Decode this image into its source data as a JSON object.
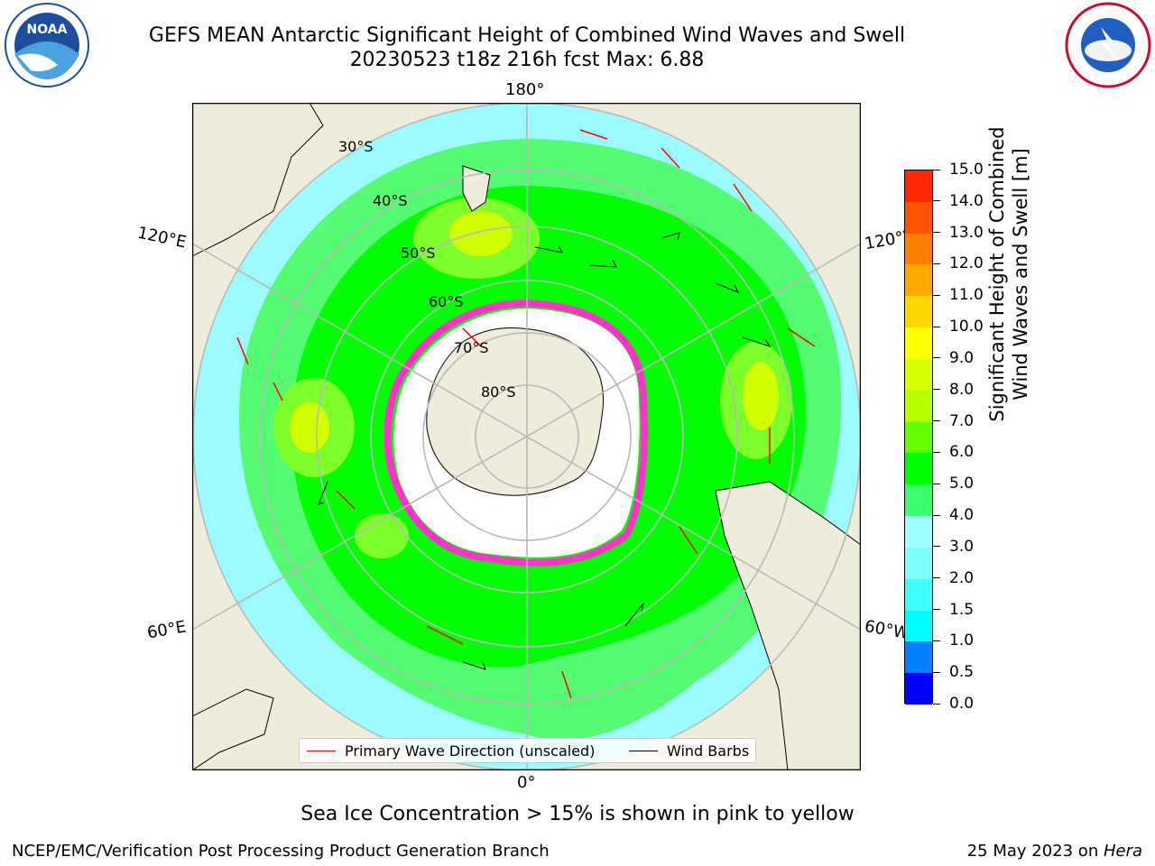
{
  "header": {
    "title_line1": "GEFS MEAN Antarctic Significant Height of Combined Wind Waves and Swell",
    "title_line2": "20230523 t18z 216h fcst   Max: 6.88"
  },
  "logos": {
    "left": "NOAA",
    "right": "NATIONAL WEATHER SERVICE"
  },
  "map": {
    "projection": "south-polar-stereographic",
    "longitude_labels": [
      "180°",
      "120°E",
      "120°W",
      "60°E",
      "60°W",
      "0°"
    ],
    "latitude_labels": [
      "30°S",
      "40°S",
      "50°S",
      "60°S",
      "70°S",
      "80°S"
    ],
    "colors": {
      "land": "#eeecda",
      "ice": "#ff33cc",
      "arrow": "#ff0000",
      "barb": "#000000",
      "grid": "#b8b8b8"
    }
  },
  "colorbar": {
    "label_line1": "Significant Height of Combined",
    "label_line2": "Wind Waves and Swell [m]",
    "ticks": [
      "0.0",
      "0.5",
      "1.0",
      "1.5",
      "2.0",
      "3.0",
      "4.0",
      "5.0",
      "6.0",
      "7.0",
      "8.0",
      "9.0",
      "10.0",
      "11.0",
      "12.0",
      "13.0",
      "14.0",
      "15.0"
    ],
    "colors": [
      "#0000ff",
      "#0080ff",
      "#00ffff",
      "#40ffff",
      "#80ffff",
      "#a0ffff",
      "#3cff70",
      "#00ff00",
      "#66ff00",
      "#b8ff00",
      "#d8ff00",
      "#ffff00",
      "#ffd700",
      "#ffaa00",
      "#ff8000",
      "#ff5500",
      "#ff2a00",
      "#ff0000"
    ]
  },
  "legend": {
    "primary": "Primary Wave Direction (unscaled)",
    "barbs": "Wind Barbs"
  },
  "footer": {
    "sea_ice_note": "Sea Ice Concentration > 15% is shown in pink to yellow",
    "left": "NCEP/EMC/Verification Post Processing Product Generation Branch",
    "right_date": "25 May 2023 on ",
    "right_host": "Hera"
  }
}
